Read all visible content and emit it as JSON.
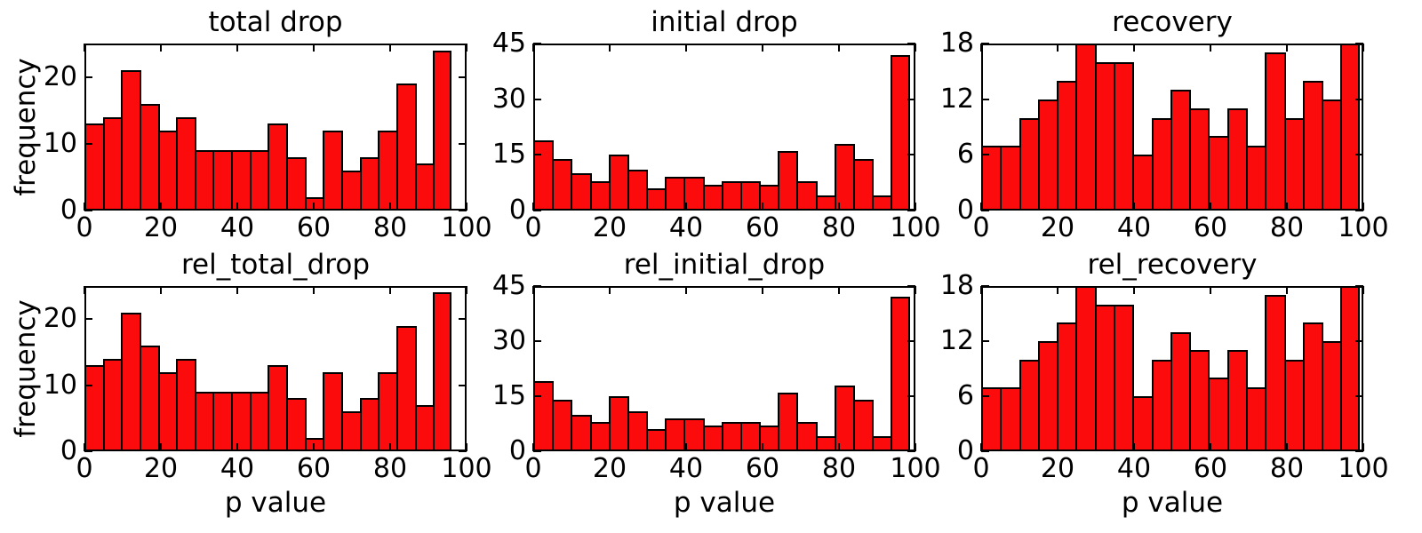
{
  "figure": {
    "background": "#ffffff",
    "bar_fill": "#fb0b0b",
    "bar_edge": "#000000",
    "axis_color": "#000000",
    "text_color": "#000000"
  },
  "chart_data": [
    {
      "type": "bar",
      "title": "total drop",
      "xlabel": "",
      "ylabel": "frequency",
      "bin_start": 0,
      "bin_width": 5,
      "n_bins": 20,
      "xlim": [
        0,
        100
      ],
      "ylim": [
        0,
        25
      ],
      "xticks": [
        0,
        20,
        40,
        60,
        80,
        100
      ],
      "yticks": [
        0,
        10,
        20
      ],
      "grid": false,
      "bars_span_fraction": 0.96,
      "values": [
        13,
        14,
        21,
        16,
        12,
        14,
        9,
        9,
        9,
        9,
        13,
        8,
        2,
        12,
        6,
        8,
        12,
        19,
        7,
        24
      ]
    },
    {
      "type": "bar",
      "title": "initial drop",
      "xlabel": "",
      "ylabel": "",
      "bin_start": 0,
      "bin_width": 5,
      "n_bins": 20,
      "xlim": [
        0,
        100
      ],
      "ylim": [
        0,
        45
      ],
      "xticks": [
        0,
        20,
        40,
        60,
        80,
        100
      ],
      "yticks": [
        0,
        15,
        30,
        45
      ],
      "grid": false,
      "bars_span_fraction": 0.985,
      "values": [
        19,
        14,
        10,
        8,
        15,
        11,
        6,
        9,
        9,
        7,
        8,
        8,
        7,
        16,
        8,
        4,
        18,
        14,
        4,
        42
      ]
    },
    {
      "type": "bar",
      "title": "recovery",
      "xlabel": "",
      "ylabel": "",
      "bin_start": 0,
      "bin_width": 5,
      "n_bins": 20,
      "xlim": [
        0,
        100
      ],
      "ylim": [
        0,
        18
      ],
      "xticks": [
        0,
        20,
        40,
        60,
        80,
        100
      ],
      "yticks": [
        0,
        6,
        12,
        18
      ],
      "grid": false,
      "bars_span_fraction": 0.99,
      "values": [
        7,
        7,
        10,
        12,
        14,
        18,
        16,
        16,
        6,
        10,
        13,
        11,
        8,
        11,
        7,
        17,
        10,
        14,
        12,
        18
      ]
    },
    {
      "type": "bar",
      "title": "rel_total_drop",
      "xlabel": "p value",
      "ylabel": "frequency",
      "bin_start": 0,
      "bin_width": 5,
      "n_bins": 20,
      "xlim": [
        0,
        100
      ],
      "ylim": [
        0,
        25
      ],
      "xticks": [
        0,
        20,
        40,
        60,
        80,
        100
      ],
      "yticks": [
        0,
        10,
        20
      ],
      "grid": false,
      "bars_span_fraction": 0.96,
      "values": [
        13,
        14,
        21,
        16,
        12,
        14,
        9,
        9,
        9,
        9,
        13,
        8,
        2,
        12,
        6,
        8,
        12,
        19,
        7,
        24
      ]
    },
    {
      "type": "bar",
      "title": "rel_initial_drop",
      "xlabel": "p value",
      "ylabel": "",
      "bin_start": 0,
      "bin_width": 5,
      "n_bins": 20,
      "xlim": [
        0,
        100
      ],
      "ylim": [
        0,
        45
      ],
      "xticks": [
        0,
        20,
        40,
        60,
        80,
        100
      ],
      "yticks": [
        0,
        15,
        30,
        45
      ],
      "grid": false,
      "bars_span_fraction": 0.985,
      "values": [
        19,
        14,
        10,
        8,
        15,
        11,
        6,
        9,
        9,
        7,
        8,
        8,
        7,
        16,
        8,
        4,
        18,
        14,
        4,
        42
      ]
    },
    {
      "type": "bar",
      "title": "rel_recovery",
      "xlabel": "p value",
      "ylabel": "",
      "bin_start": 0,
      "bin_width": 5,
      "n_bins": 20,
      "xlim": [
        0,
        100
      ],
      "ylim": [
        0,
        18
      ],
      "xticks": [
        0,
        20,
        40,
        60,
        80,
        100
      ],
      "yticks": [
        0,
        6,
        12,
        18
      ],
      "grid": false,
      "bars_span_fraction": 0.99,
      "values": [
        7,
        7,
        10,
        12,
        14,
        18,
        16,
        16,
        6,
        10,
        13,
        11,
        8,
        11,
        7,
        17,
        10,
        14,
        12,
        18
      ]
    }
  ]
}
